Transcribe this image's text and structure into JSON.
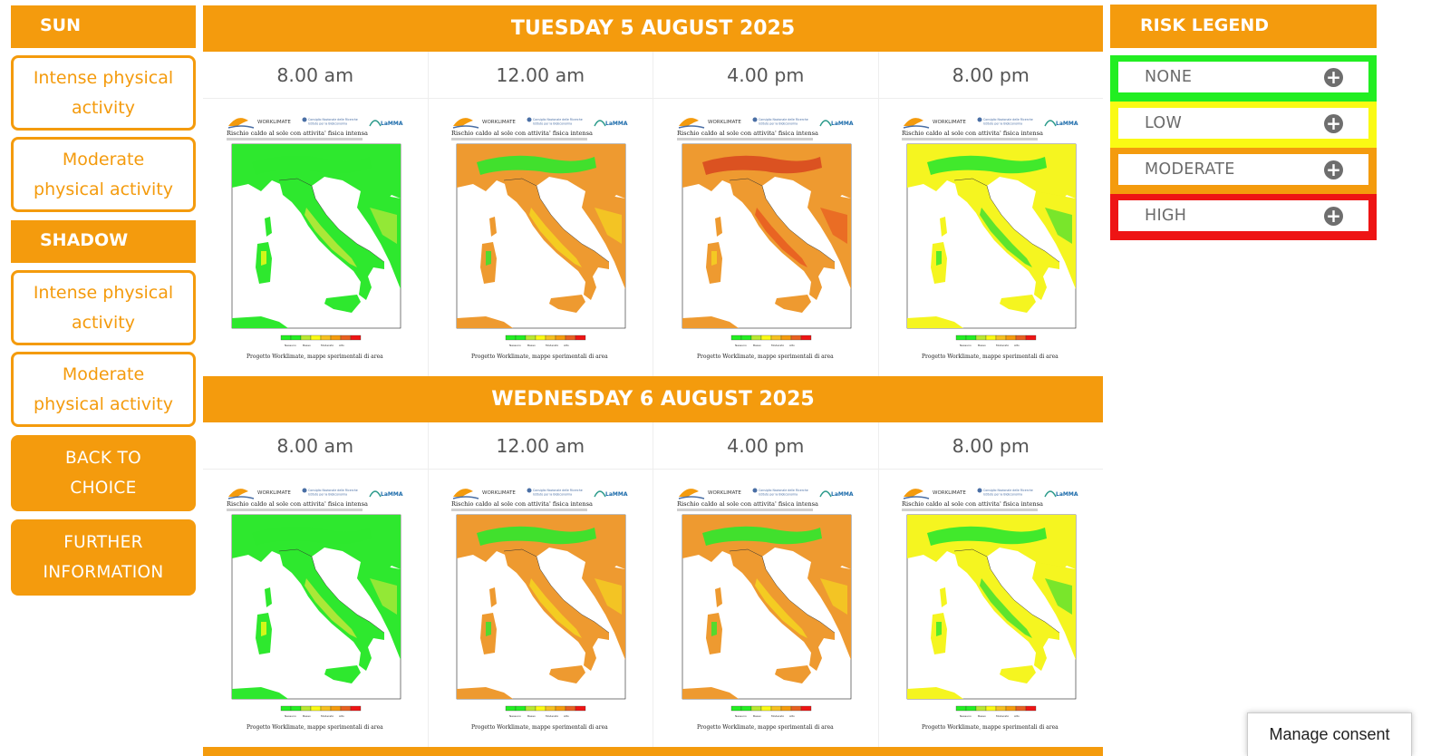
{
  "colors": {
    "accent": "#f49b0d",
    "risk_none": "#22ee22",
    "risk_low": "#fafa14",
    "risk_moderate": "#f49b0d",
    "risk_high": "#ee1414"
  },
  "sidebar": {
    "sun_header": "SUN",
    "sun_intense": "Intense physical activity",
    "sun_moderate": "Moderate physical activity",
    "shadow_header": "SHADOW",
    "shadow_intense": "Intense physical activity",
    "shadow_moderate": "Moderate physical activity",
    "back_button": "BACK TO CHOICE",
    "info_button": "FURTHER INFORMATION"
  },
  "days": [
    {
      "title": "TUESDAY 5 AUGUST 2025",
      "times": [
        "8.00 am",
        "12.00 am",
        "4.00 pm",
        "8.00 pm"
      ],
      "maps": [
        {
          "risk": "none"
        },
        {
          "risk": "moderate"
        },
        {
          "risk": "moderate-high"
        },
        {
          "risk": "low"
        }
      ]
    },
    {
      "title": "WEDNESDAY 6 AUGUST 2025",
      "times": [
        "8.00 am",
        "12.00 am",
        "4.00 pm",
        "8.00 pm"
      ],
      "maps": [
        {
          "risk": "none"
        },
        {
          "risk": "moderate"
        },
        {
          "risk": "moderate"
        },
        {
          "risk": "low"
        }
      ]
    }
  ],
  "map_text": {
    "brand": "WORKLIMATE",
    "partner": "Consiglio Nazionale delle Ricerche",
    "partner2": "Istituto per la BioEconomia",
    "lamma": "LaMMA",
    "title": "Rischio caldo al sole con attivita' fisica intensa",
    "footer": "Progetto Worklimate, mappe sperimentali di area",
    "scale_labels": [
      "Nessuno",
      "Basso",
      "Moderato",
      "Alto"
    ]
  },
  "legend": {
    "header": "RISK LEGEND",
    "items": [
      {
        "label": "NONE",
        "color": "#22ee22"
      },
      {
        "label": "LOW",
        "color": "#fafa14"
      },
      {
        "label": "MODERATE",
        "color": "#f49b0d"
      },
      {
        "label": "HIGH",
        "color": "#ee1414"
      }
    ]
  },
  "consent": {
    "label": "Manage consent"
  }
}
